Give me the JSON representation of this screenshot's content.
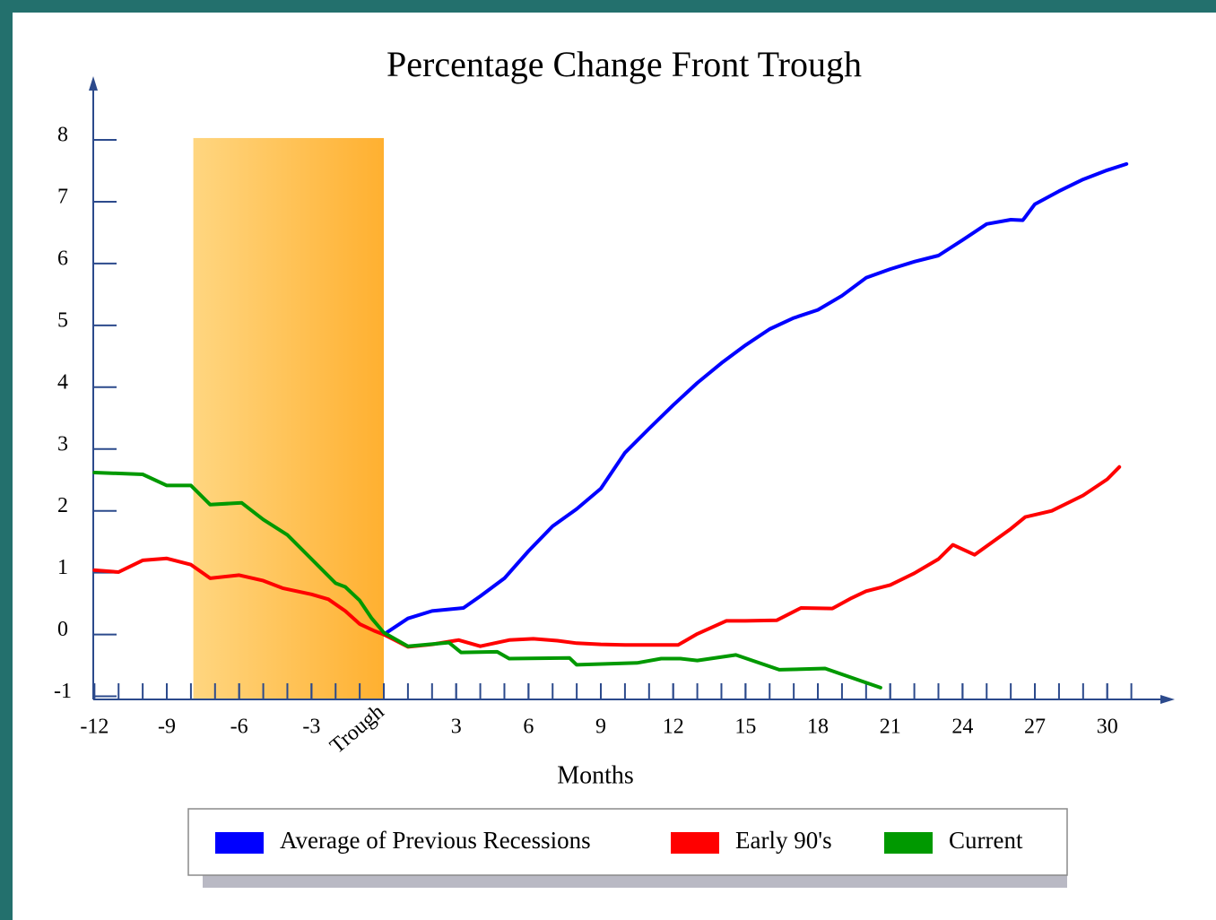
{
  "chart_data": {
    "type": "line",
    "title": "Percentage Change Front Trough",
    "x_label": "Months",
    "xlim": [
      -12.05,
      32.8
    ],
    "ylim": [
      -1.05,
      9.03
    ],
    "xticks": [
      -12,
      -9,
      -6,
      -3,
      {
        "value": 0,
        "label": "Trough"
      },
      3,
      6,
      9,
      12,
      15,
      18,
      21,
      24,
      27,
      30
    ],
    "xminorticks": [
      -11,
      -10,
      -9,
      -8,
      -7,
      -6,
      -5,
      -4,
      -3,
      -2,
      -1,
      0,
      1,
      2,
      3,
      4,
      5,
      6,
      7,
      8,
      9,
      10,
      11,
      12,
      13,
      14,
      15,
      16,
      17,
      18,
      19,
      20,
      21,
      22,
      23,
      24,
      25,
      26,
      27,
      28,
      29,
      30,
      31
    ],
    "yticks": [
      -1,
      0,
      1,
      2,
      3,
      4,
      5,
      6,
      7,
      8
    ],
    "shaded_region": {
      "x": [
        -7.9,
        0
      ],
      "y": [
        -1.05,
        8.03
      ],
      "colors": [
        "#ffd680",
        "#ffb030"
      ]
    },
    "axis_color": "#2c4a8c",
    "series": [
      {
        "name": "Average of Previous Recessions",
        "color": "#0000ff",
        "x": [
          0,
          1,
          2,
          3.3,
          4,
          5,
          6,
          7,
          8,
          9,
          10,
          11,
          12,
          13,
          14,
          15,
          16,
          17,
          18,
          19,
          20,
          21,
          22,
          23,
          24,
          25,
          26,
          26.5,
          27,
          28,
          29,
          30,
          30.8
        ],
        "values": [
          0,
          0.26,
          0.38,
          0.43,
          0.62,
          0.91,
          1.35,
          1.75,
          2.03,
          2.36,
          2.94,
          3.33,
          3.71,
          4.07,
          4.39,
          4.68,
          4.94,
          5.12,
          5.25,
          5.48,
          5.77,
          5.91,
          6.03,
          6.13,
          6.38,
          6.64,
          6.71,
          6.7,
          6.96,
          7.17,
          7.36,
          7.51,
          7.61
        ]
      },
      {
        "name": "Early 90's",
        "color": "#ff0000",
        "x": [
          -12,
          -11,
          -10,
          -9,
          -8,
          -7.2,
          -6,
          -5,
          -4.2,
          -3,
          -2.3,
          -1.6,
          -1,
          -0.4,
          0,
          1,
          2,
          3.1,
          4,
          5.2,
          6.2,
          7.2,
          8,
          9,
          10,
          11,
          12.2,
          13,
          14.2,
          15,
          16.3,
          17.3,
          18.6,
          19.4,
          20,
          21,
          22,
          23,
          23.6,
          24.5,
          26,
          26.6,
          27.7,
          29,
          30,
          30.5
        ],
        "values": [
          1.04,
          1.01,
          1.2,
          1.23,
          1.13,
          0.91,
          0.96,
          0.87,
          0.75,
          0.65,
          0.57,
          0.38,
          0.17,
          0.06,
          0,
          -0.2,
          -0.16,
          -0.09,
          -0.19,
          -0.09,
          -0.07,
          -0.1,
          -0.14,
          -0.16,
          -0.17,
          -0.17,
          -0.17,
          0.01,
          0.22,
          0.22,
          0.23,
          0.43,
          0.42,
          0.59,
          0.7,
          0.8,
          0.99,
          1.22,
          1.45,
          1.29,
          1.71,
          1.9,
          2.0,
          2.25,
          2.51,
          2.71
        ]
      },
      {
        "name": "Current",
        "color": "#009900",
        "x": [
          -12,
          -10,
          -9,
          -8,
          -7.2,
          -5.9,
          -5,
          -4,
          -3,
          -2,
          -1.6,
          -1,
          -0.5,
          0,
          1,
          2.7,
          3.2,
          4.7,
          5.2,
          7.7,
          8,
          10.5,
          11.5,
          12.3,
          13,
          14.6,
          16.4,
          18.3,
          20.6
        ],
        "values": [
          2.62,
          2.59,
          2.41,
          2.41,
          2.1,
          2.13,
          1.86,
          1.61,
          1.22,
          0.83,
          0.77,
          0.55,
          0.26,
          0.03,
          -0.19,
          -0.13,
          -0.29,
          -0.28,
          -0.39,
          -0.38,
          -0.49,
          -0.46,
          -0.39,
          -0.39,
          -0.42,
          -0.33,
          -0.57,
          -0.55,
          -0.86
        ]
      }
    ]
  }
}
